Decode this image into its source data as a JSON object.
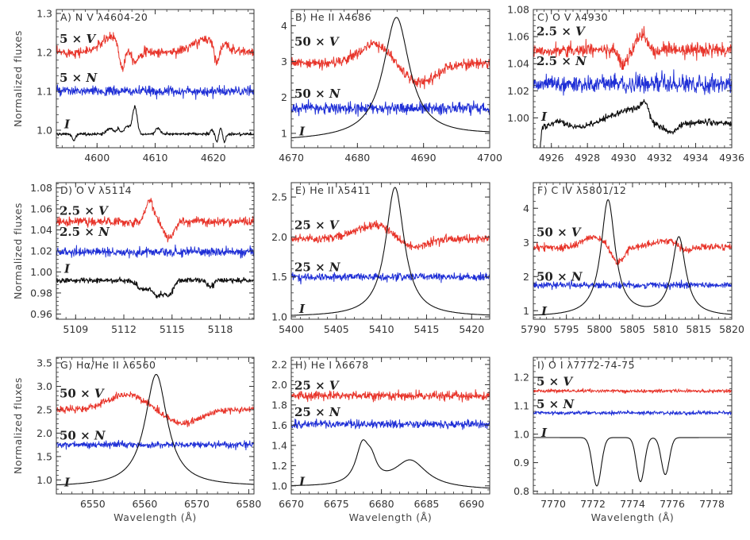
{
  "figure": {
    "ylabel": "Normalized fluxes",
    "xlabel": "Wavelength (Å)",
    "colors": {
      "V": "#e8352b",
      "N": "#1f2fd6",
      "I": "#111111"
    },
    "times_glyph": "×"
  },
  "chart_data": [
    {
      "id": "A",
      "type": "line",
      "title": "A) N V λ4604-20",
      "xlim": [
        4593,
        4627
      ],
      "ylim": [
        0.955,
        1.31
      ],
      "xticks": [
        4600,
        4610,
        4620
      ],
      "xtick_labels": [
        "4600",
        "4610",
        "4620"
      ],
      "yticks": [
        1.0,
        1.1,
        1.2,
        1.3
      ],
      "ytick_labels": [
        "1.0",
        "1.1",
        "1.2",
        "1.3"
      ],
      "ylabel": "Normalized fluxes",
      "xlabel": "",
      "labels": {
        "V": "5",
        "N": "5",
        "I": "I"
      },
      "label_pos": {
        "V": 1.235,
        "N": 1.135,
        "I": 1.015
      },
      "series": [
        {
          "name": "V",
          "base": 1.2,
          "noise": 0.01,
          "features": [
            [
              4602.8,
              0.04,
              2.0
            ],
            [
              4604.3,
              -0.07,
              0.5
            ],
            [
              4606.5,
              -0.03,
              0.6
            ],
            [
              4619.2,
              0.035,
              2.5
            ],
            [
              4620.6,
              -0.05,
              0.5
            ]
          ]
        },
        {
          "name": "N",
          "base": 1.1,
          "noise": 0.01,
          "features": []
        },
        {
          "name": "I",
          "base": 0.99,
          "noise": 0.003,
          "features": [
            [
              4596,
              -0.015,
              0.3
            ],
            [
              4602.3,
              0.015,
              0.6
            ],
            [
              4603.7,
              0.012,
              0.3
            ],
            [
              4605.2,
              0.02,
              0.5
            ],
            [
              4606.5,
              0.07,
              0.4
            ],
            [
              4610.5,
              0.015,
              0.4
            ],
            [
              4619.8,
              0.01,
              0.3
            ],
            [
              4620.6,
              -0.02,
              0.25
            ],
            [
              4621.3,
              0.015,
              0.25
            ],
            [
              4621.9,
              -0.02,
              0.25
            ]
          ]
        }
      ]
    },
    {
      "id": "B",
      "type": "line",
      "title": "B) He II λ4686",
      "xlim": [
        4670,
        4700
      ],
      "ylim": [
        0.6,
        4.45
      ],
      "xticks": [
        4670,
        4680,
        4690,
        4700
      ],
      "xtick_labels": [
        "4670",
        "4680",
        "4690",
        "4700"
      ],
      "yticks": [
        1,
        2,
        3,
        4
      ],
      "ytick_labels": [
        "1",
        "2",
        "3",
        "4"
      ],
      "ylabel": "",
      "xlabel": "",
      "labels": {
        "V": "50",
        "N": "50",
        "I": "I"
      },
      "label_pos": {
        "V": 3.55,
        "N": 2.1,
        "I": 1.05
      },
      "series": [
        {
          "name": "V",
          "base": 2.95,
          "noise": 0.12,
          "features": [
            [
              4682.8,
              0.55,
              2.5
            ],
            [
              4689.2,
              -0.55,
              2.6
            ]
          ]
        },
        {
          "name": "N",
          "base": 1.7,
          "noise": 0.13,
          "features": []
        },
        {
          "name": "I",
          "base": 0.8,
          "noise": 0.0,
          "lorentz": [
            [
              4685.9,
              3.35,
              2.4
            ]
          ],
          "slope": [
            0.8,
            0.95
          ]
        }
      ]
    },
    {
      "id": "C",
      "type": "line",
      "title": "C) O V λ4930",
      "xlim": [
        4925,
        4936
      ],
      "ylim": [
        0.978,
        1.08
      ],
      "xticks": [
        4926,
        4928,
        4930,
        4932,
        4934,
        4936
      ],
      "xtick_labels": [
        "4926",
        "4928",
        "4930",
        "4932",
        "4934",
        "4936"
      ],
      "yticks": [
        1.0,
        1.02,
        1.04,
        1.06,
        1.08
      ],
      "ytick_labels": [
        "1.00",
        "1.02",
        "1.04",
        "1.06",
        "1.08"
      ],
      "ylabel": "",
      "xlabel": "",
      "labels": {
        "V": "2.5",
        "N": "2.5",
        "I": "I"
      },
      "label_pos": {
        "V": 1.064,
        "N": 1.042,
        "I": 1.001
      },
      "series": [
        {
          "name": "V",
          "base": 1.05,
          "noise": 0.004,
          "features": [
            [
              4930.0,
              -0.012,
              0.2
            ],
            [
              4931.0,
              0.012,
              0.25
            ]
          ]
        },
        {
          "name": "N",
          "base": 1.025,
          "noise": 0.005,
          "features": []
        },
        {
          "name": "I",
          "base": 0.993,
          "noise": 0.0018,
          "features": [
            [
              4925.2,
              -0.05,
              0.12
            ],
            [
              4926.4,
              0.004,
              0.4
            ],
            [
              4929.8,
              0.01,
              0.9
            ],
            [
              4930.8,
              0.008,
              0.5
            ],
            [
              4931.2,
              0.01,
              0.2
            ],
            [
              4932.6,
              -0.005,
              0.3
            ],
            [
              4934.5,
              0.004,
              1.2
            ]
          ]
        }
      ]
    },
    {
      "id": "D",
      "type": "line",
      "title": "D) O V λ5114",
      "xlim": [
        5107.8,
        5120.1
      ],
      "ylim": [
        0.955,
        1.085
      ],
      "xticks": [
        5109,
        5112,
        5115,
        5118
      ],
      "xtick_labels": [
        "5109",
        "5112",
        "5115",
        "5118"
      ],
      "yticks": [
        0.96,
        0.98,
        1.0,
        1.02,
        1.04,
        1.06,
        1.08
      ],
      "ytick_labels": [
        "0.96",
        "0.98",
        "1.00",
        "1.02",
        "1.04",
        "1.06",
        "1.08"
      ],
      "ylabel": "Normalized fluxes",
      "xlabel": "",
      "labels": {
        "V": "2.5",
        "N": "2.5",
        "I": "I"
      },
      "label_pos": {
        "V": 1.058,
        "N": 1.038,
        "I": 1.003
      },
      "series": [
        {
          "name": "V",
          "base": 1.048,
          "noise": 0.0035,
          "features": [
            [
              5113.6,
              0.02,
              0.25
            ],
            [
              5114.8,
              -0.016,
              0.3
            ]
          ]
        },
        {
          "name": "N",
          "base": 1.019,
          "noise": 0.0035,
          "features": []
        },
        {
          "name": "I",
          "base": 0.992,
          "noise": 0.002,
          "features": [
            [
              5113.2,
              -0.008,
              0.4
            ],
            [
              5114.1,
              -0.014,
              0.3
            ],
            [
              5114.8,
              -0.014,
              0.25
            ],
            [
              5117.4,
              -0.006,
              0.2
            ]
          ]
        }
      ]
    },
    {
      "id": "E",
      "type": "line",
      "title": "E) He II λ5411",
      "xlim": [
        5400,
        5422
      ],
      "ylim": [
        0.97,
        2.68
      ],
      "xticks": [
        5400,
        5405,
        5410,
        5415,
        5420
      ],
      "xtick_labels": [
        "5400",
        "5405",
        "5410",
        "5415",
        "5420"
      ],
      "yticks": [
        1.0,
        1.5,
        2.0,
        2.5
      ],
      "ytick_labels": [
        "1.0",
        "1.5",
        "2.0",
        "2.5"
      ],
      "ylabel": "",
      "xlabel": "",
      "labels": {
        "V": "25",
        "N": "25",
        "I": "I"
      },
      "label_pos": {
        "V": 2.15,
        "N": 1.62,
        "I": 1.1
      },
      "series": [
        {
          "name": "V",
          "base": 1.98,
          "noise": 0.04,
          "features": [
            [
              5409.5,
              0.17,
              2.2
            ],
            [
              5413.3,
              -0.14,
              1.6
            ]
          ]
        },
        {
          "name": "N",
          "base": 1.5,
          "noise": 0.04,
          "features": []
        },
        {
          "name": "I",
          "base": 1.0,
          "noise": 0.0,
          "lorentz": [
            [
              5411.5,
              1.62,
              1.25
            ]
          ],
          "slope": [
            1.0,
            1.0
          ]
        }
      ]
    },
    {
      "id": "F",
      "type": "line",
      "title": "F) C IV λ5801/12",
      "xlim": [
        5790,
        5820
      ],
      "ylim": [
        0.75,
        4.75
      ],
      "xticks": [
        5790,
        5795,
        5800,
        5805,
        5810,
        5815,
        5820
      ],
      "xtick_labels": [
        "5790",
        "5795",
        "5800",
        "5805",
        "5810",
        "5815",
        "5820"
      ],
      "yticks": [
        1,
        2,
        3,
        4
      ],
      "ytick_labels": [
        "1",
        "2",
        "3",
        "4"
      ],
      "ylabel": "",
      "xlabel": "",
      "labels": {
        "V": "50",
        "N": "50",
        "I": "I"
      },
      "label_pos": {
        "V": 3.3,
        "N": 2.0,
        "I": 0.98
      },
      "series": [
        {
          "name": "V",
          "base": 2.85,
          "noise": 0.08,
          "features": [
            [
              5799,
              0.3,
              1.6
            ],
            [
              5802.8,
              -0.45,
              0.9
            ],
            [
              5810.5,
              0.2,
              2.4
            ],
            [
              5813,
              -0.2,
              1.0
            ]
          ]
        },
        {
          "name": "N",
          "base": 1.75,
          "noise": 0.08,
          "features": []
        },
        {
          "name": "I",
          "base": 0.82,
          "noise": 0.0,
          "lorentz": [
            [
              5801.3,
              3.4,
              1.3
            ],
            [
              5812.0,
              2.3,
              1.25
            ]
          ],
          "slope": [
            0.82,
            0.82
          ]
        }
      ]
    },
    {
      "id": "G",
      "type": "line",
      "title": "G) Hα/He II λ6560",
      "xlim": [
        6543,
        6581
      ],
      "ylim": [
        0.7,
        3.62
      ],
      "xticks": [
        6550,
        6560,
        6570,
        6580
      ],
      "xtick_labels": [
        "6550",
        "6560",
        "6570",
        "6580"
      ],
      "yticks": [
        1.0,
        1.5,
        2.0,
        2.5,
        3.0,
        3.5
      ],
      "ytick_labels": [
        "1.0",
        "1.5",
        "2.0",
        "2.5",
        "3.0",
        "3.5"
      ],
      "ylabel": "Normalized fluxes",
      "xlabel": "Wavelength (Å)",
      "labels": {
        "V": "50",
        "N": "50",
        "I": "I"
      },
      "label_pos": {
        "V": 2.85,
        "N": 1.95,
        "I": 0.95
      },
      "series": [
        {
          "name": "V",
          "base": 2.5,
          "noise": 0.06,
          "features": [
            [
              6556.5,
              0.32,
              3.5
            ],
            [
              6567.5,
              -0.3,
              3.2
            ]
          ]
        },
        {
          "name": "N",
          "base": 1.75,
          "noise": 0.06,
          "features": []
        },
        {
          "name": "I",
          "base": 0.85,
          "noise": 0.0,
          "lorentz": [
            [
              6562.2,
              2.4,
              2.6
            ]
          ],
          "slope": [
            0.85,
            0.86
          ]
        }
      ]
    },
    {
      "id": "H",
      "type": "line",
      "title": "H) He I λ6678",
      "xlim": [
        6670,
        6692
      ],
      "ylim": [
        0.92,
        2.27
      ],
      "xticks": [
        6670,
        6675,
        6680,
        6685,
        6690
      ],
      "xtick_labels": [
        "6670",
        "6675",
        "6680",
        "6685",
        "6690"
      ],
      "yticks": [
        1.0,
        1.2,
        1.4,
        1.6,
        1.8,
        2.0,
        2.2
      ],
      "ytick_labels": [
        "1.0",
        "1.2",
        "1.4",
        "1.6",
        "1.8",
        "2.0",
        "2.2"
      ],
      "ylabel": "",
      "xlabel": "Wavelength (Å)",
      "labels": {
        "V": "25",
        "N": "25",
        "I": "I"
      },
      "label_pos": {
        "V": 1.99,
        "N": 1.73,
        "I": 1.04
      },
      "series": [
        {
          "name": "V",
          "base": 1.89,
          "noise": 0.035,
          "features": []
        },
        {
          "name": "N",
          "base": 1.61,
          "noise": 0.035,
          "features": []
        },
        {
          "name": "I",
          "base": 0.98,
          "noise": 0.0,
          "lorentz": [
            [
              6677.9,
              0.38,
              0.9
            ],
            [
              6678.9,
              0.16,
              0.7
            ],
            [
              6683.2,
              0.27,
              2.2
            ]
          ],
          "slope": [
            0.99,
            0.96
          ]
        }
      ]
    },
    {
      "id": "I",
      "type": "line",
      "title": "I) O I λ7772-74-75",
      "xlim": [
        7769,
        7779
      ],
      "ylim": [
        0.79,
        1.27
      ],
      "xticks": [
        7770,
        7772,
        7774,
        7776,
        7778
      ],
      "xtick_labels": [
        "7770",
        "7772",
        "7774",
        "7776",
        "7778"
      ],
      "yticks": [
        0.8,
        0.9,
        1.0,
        1.1,
        1.2
      ],
      "ytick_labels": [
        "0.8",
        "0.9",
        "1.0",
        "1.1",
        "1.2"
      ],
      "ylabel": "",
      "xlabel": "Wavelength (Å)",
      "labels": {
        "V": "5",
        "N": "5",
        "I": "I"
      },
      "label_pos": {
        "V": 1.185,
        "N": 1.105,
        "I": 1.005
      },
      "series": [
        {
          "name": "V",
          "base": 1.152,
          "noise": 0.005,
          "features": []
        },
        {
          "name": "N",
          "base": 1.075,
          "noise": 0.005,
          "features": []
        },
        {
          "name": "I",
          "base": 0.988,
          "noise": 0.0,
          "gauss": [
            [
              7772.2,
              -0.17,
              0.22
            ],
            [
              7774.4,
              -0.155,
              0.2
            ],
            [
              7775.65,
              -0.13,
              0.2
            ]
          ]
        }
      ]
    }
  ]
}
